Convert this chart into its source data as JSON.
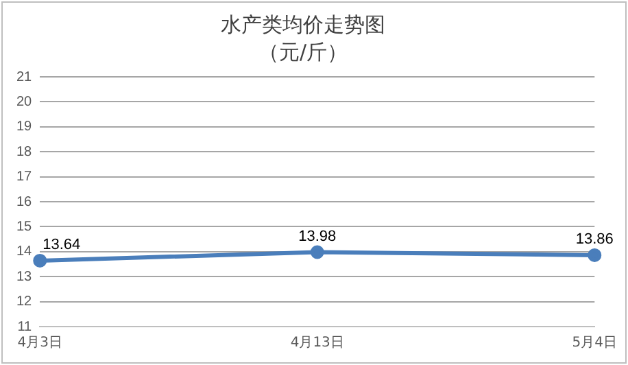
{
  "chart_data": {
    "type": "line",
    "title": "水产类均价走势图",
    "subtitle": "（元/斤）",
    "categories": [
      "4月3日",
      "4月13日",
      "5月4日"
    ],
    "series": [
      {
        "color": "#4a7ebb",
        "values": [
          13.64,
          13.98,
          13.86
        ]
      }
    ],
    "ylim": [
      11,
      21
    ],
    "yticks": [
      11,
      12,
      13,
      14,
      15,
      16,
      17,
      18,
      19,
      20,
      21
    ],
    "grid": "y",
    "marker": "circle",
    "line_style": "solid",
    "data_labels": true,
    "legend": false
  }
}
